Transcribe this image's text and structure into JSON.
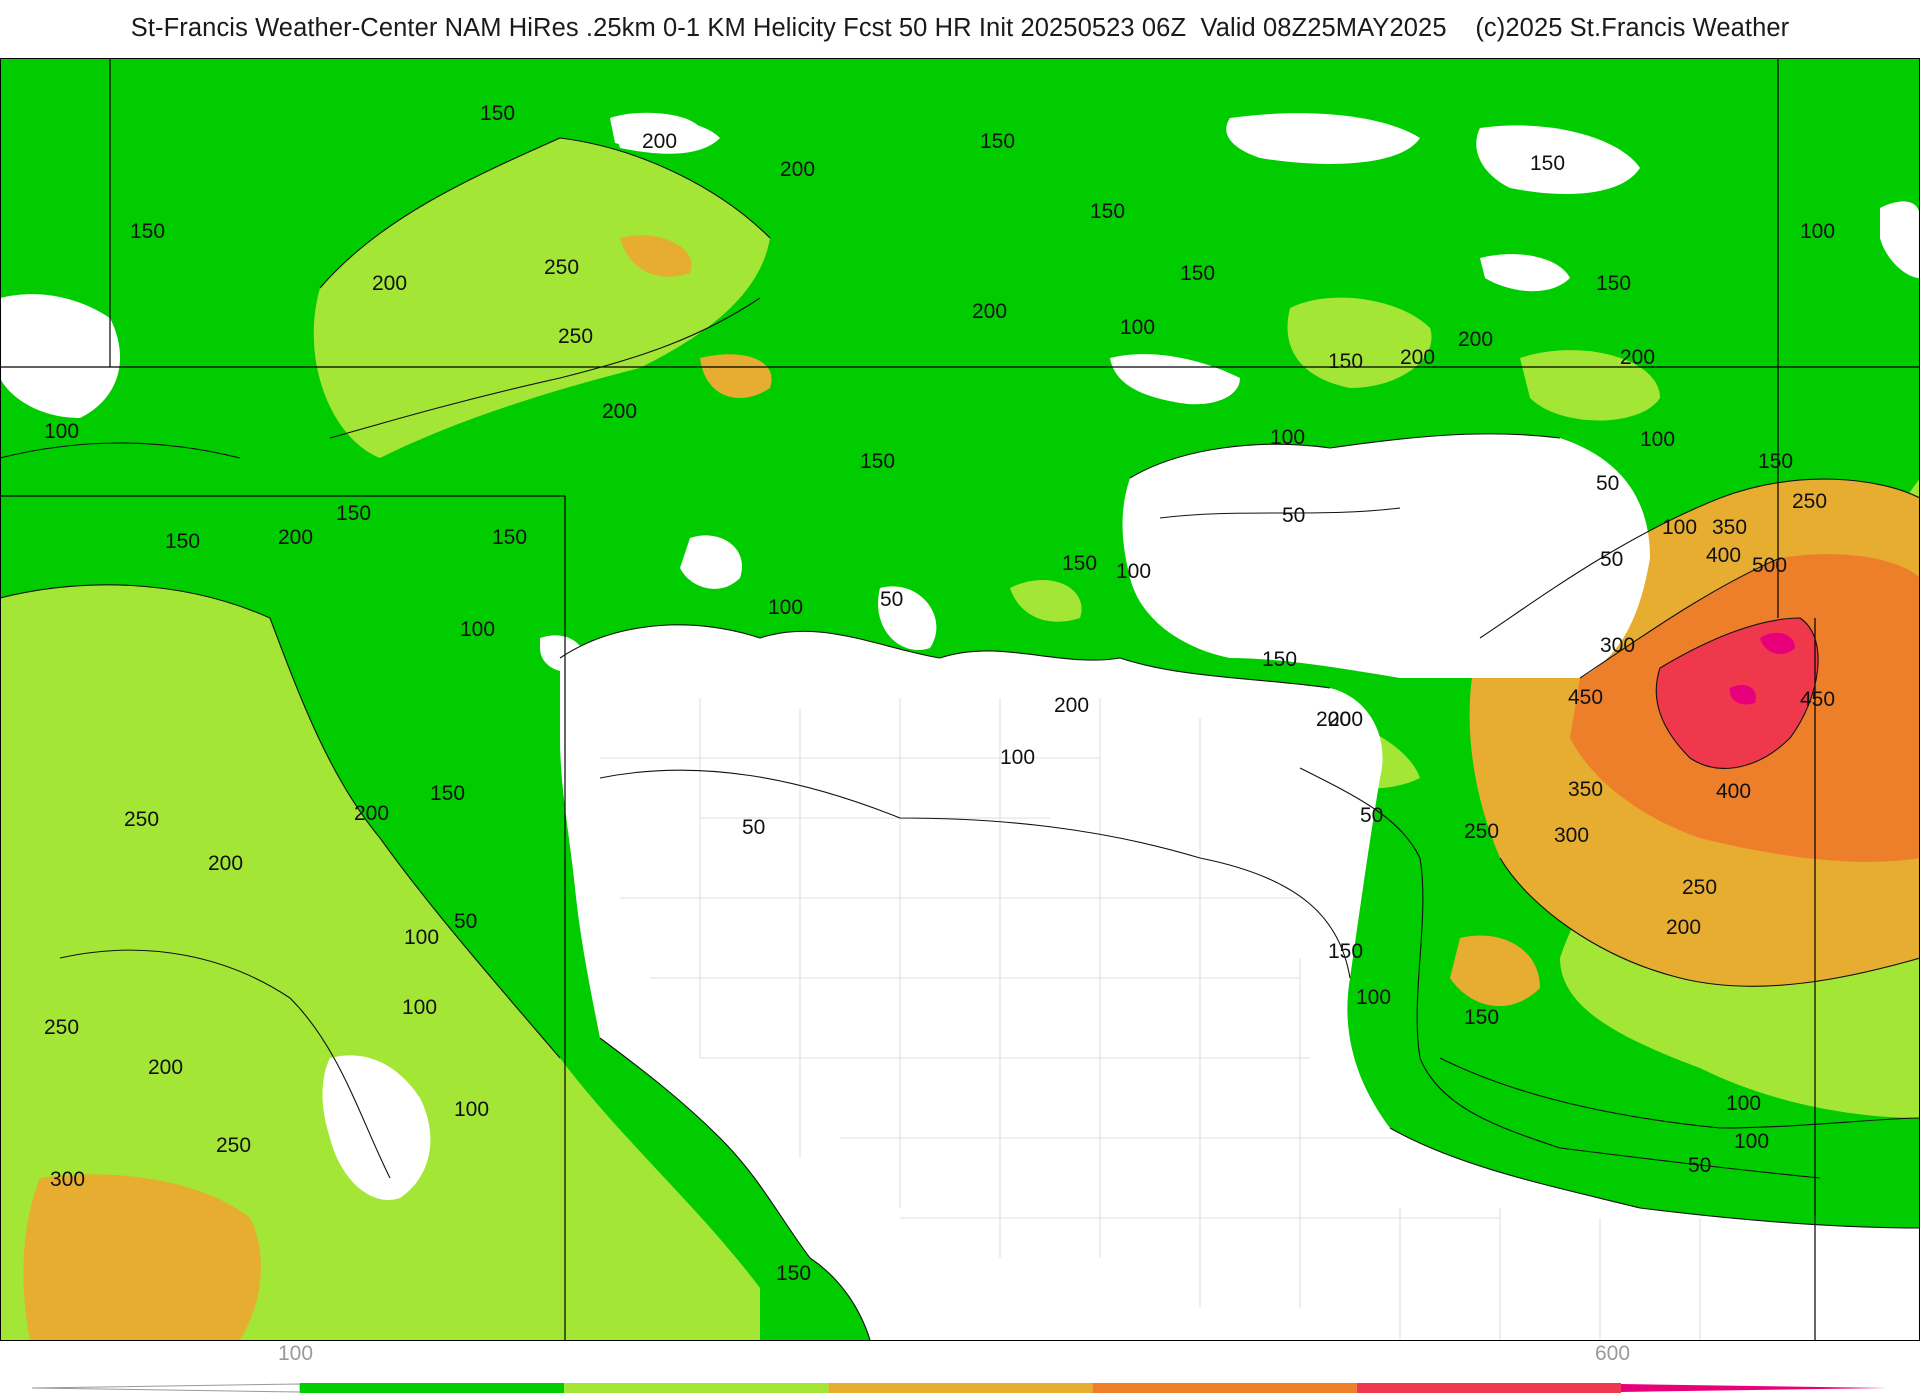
{
  "header": {
    "title": "St-Francis Weather-Center NAM HiRes .25km 0-1 KM Helicity Fcst 50 HR Init 20250523 06Z  Valid 08Z25MAY2025    (c)2025 St.Francis Weather"
  },
  "colorbar": {
    "ticks": [
      {
        "label": "100",
        "value": 100
      },
      {
        "label": "600",
        "value": 600
      }
    ],
    "bins": [
      {
        "from": 100,
        "to": 200,
        "color": "#00cc00"
      },
      {
        "from": 200,
        "to": 300,
        "color": "#a3e635"
      },
      {
        "from": 300,
        "to": 400,
        "color": "#e6ad30"
      },
      {
        "from": 400,
        "to": 500,
        "color": "#ee7f2a"
      },
      {
        "from": 500,
        "to": 600,
        "color": "#f0384d"
      },
      {
        "from": 600,
        "to": 700,
        "color": "#e8007a"
      }
    ]
  },
  "map": {
    "contour_labels": [
      "150",
      "200",
      "200",
      "150",
      "150",
      "150",
      "200",
      "250",
      "250",
      "200",
      "150",
      "150",
      "200",
      "200",
      "100",
      "150",
      "150",
      "100",
      "150",
      "200",
      "150",
      "100",
      "100",
      "200",
      "150",
      "200",
      "100",
      "100",
      "150",
      "150",
      "150",
      "100",
      "50",
      "100",
      "50",
      "50",
      "50",
      "100",
      "350",
      "250",
      "400",
      "500",
      "300",
      "450",
      "450",
      "400",
      "350",
      "300",
      "250",
      "200",
      "250",
      "150",
      "200",
      "250",
      "200",
      "150",
      "100",
      "50",
      "200",
      "200",
      "250",
      "300",
      "250",
      "200",
      "150",
      "100",
      "100",
      "50",
      "50",
      "100",
      "150",
      "100",
      "100",
      "50",
      "150",
      "200",
      "100"
    ]
  }
}
